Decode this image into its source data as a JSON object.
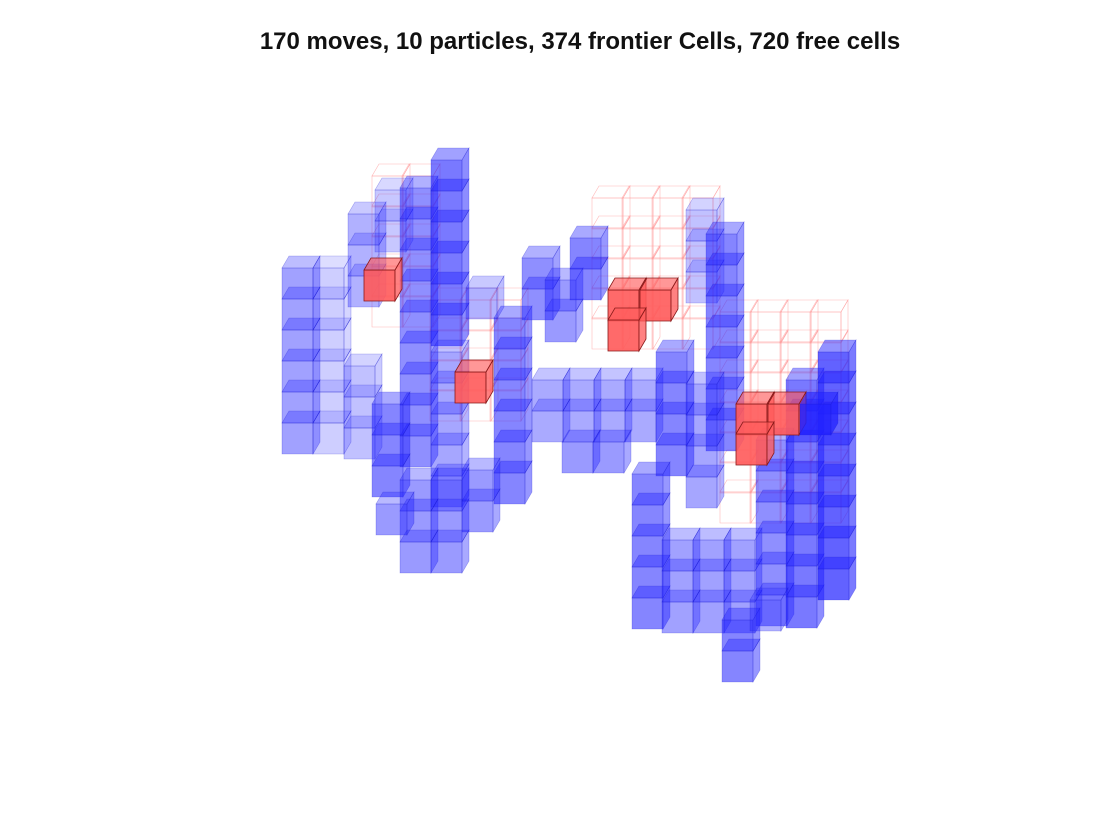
{
  "figure": {
    "title": "170 moves, 10 particles, 374 frontier Cells, 720 free cells"
  },
  "legend_colors": {
    "frontier": "#2020ff",
    "particle": "#ff5a5a",
    "free": "#ff9a9a"
  },
  "icons": {
    "cube": "unit-cube-voxel"
  }
}
